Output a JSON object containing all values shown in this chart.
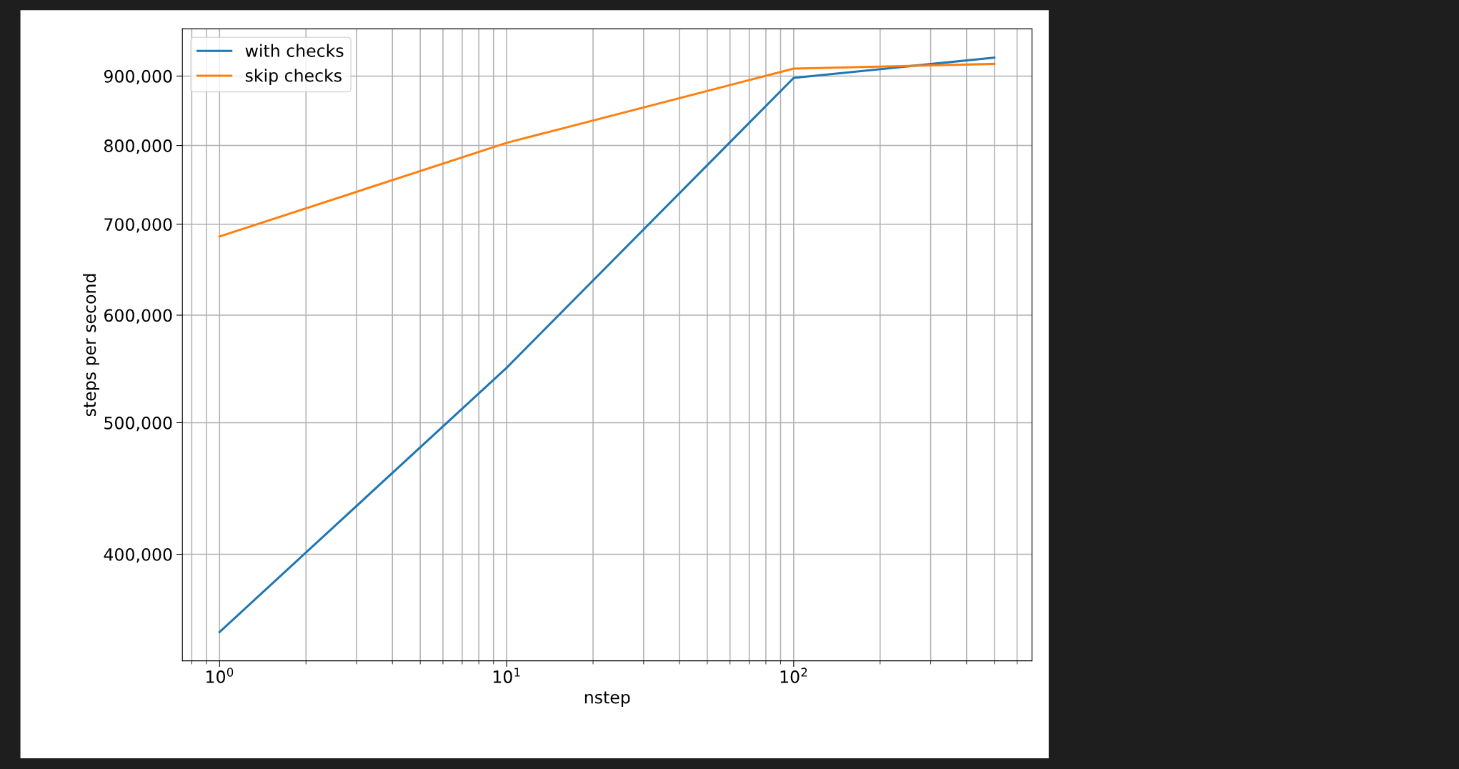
{
  "chart_data": {
    "type": "line",
    "xlabel": "nstep",
    "ylabel": "steps per second",
    "log": "xy",
    "grid": true,
    "legend": "top left",
    "xlim": [
      0.742,
      676
    ],
    "xticks": [
      {
        "value": 1,
        "label": "10$^{0}$"
      },
      {
        "value": 10,
        "label": "10$^{1}$"
      },
      {
        "value": 100,
        "label": "10$^{2}$"
      }
    ],
    "ylim": [
      333900,
      975000
    ],
    "yticks": [
      {
        "value": 400000,
        "label": "400,000"
      },
      {
        "value": 500000,
        "label": "500,000"
      },
      {
        "value": 600000,
        "label": "600,000"
      },
      {
        "value": 700000,
        "label": "700,000"
      },
      {
        "value": 800000,
        "label": "800,000"
      },
      {
        "value": 900000,
        "label": "900,000"
      }
    ],
    "x": [
      1,
      10,
      100,
      500
    ],
    "series": [
      {
        "name": "with checks",
        "color": "#1f77b4",
        "values": [
          350600,
          548800,
          897200,
          928600
        ]
      },
      {
        "name": "skip checks",
        "color": "#ff7f0e",
        "values": [
          685600,
          803600,
          911400,
          918700
        ]
      }
    ]
  }
}
